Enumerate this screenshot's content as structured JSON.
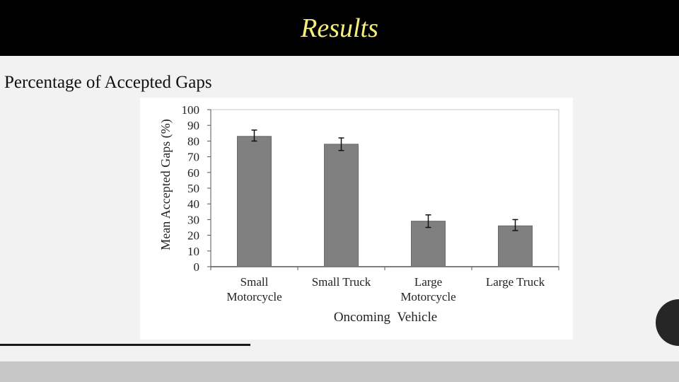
{
  "slide": {
    "title": "Results",
    "subtitle": "Percentage of Accepted Gaps"
  },
  "colors": {
    "title_bar": "#000000",
    "title_text": "#f5ef7a",
    "bar_fill": "#808080",
    "background": "#f2f2f2"
  },
  "chart_data": {
    "type": "bar",
    "title": "",
    "xlabel": "Oncoming  Vehicle",
    "ylabel": "Mean Accepted Gaps (%)",
    "categories": [
      [
        "Small",
        "Motorcycle"
      ],
      [
        "Small Truck"
      ],
      [
        "Large",
        "Motorcycle"
      ],
      [
        "Large Truck"
      ]
    ],
    "values": [
      83,
      78,
      29,
      26
    ],
    "error_low": [
      80,
      74,
      25,
      23
    ],
    "error_high": [
      87,
      82,
      33,
      30
    ],
    "ylim": [
      0,
      100
    ],
    "yticks": [
      0,
      10,
      20,
      30,
      40,
      50,
      60,
      70,
      80,
      90,
      100
    ],
    "grid": false,
    "legend": "none"
  }
}
